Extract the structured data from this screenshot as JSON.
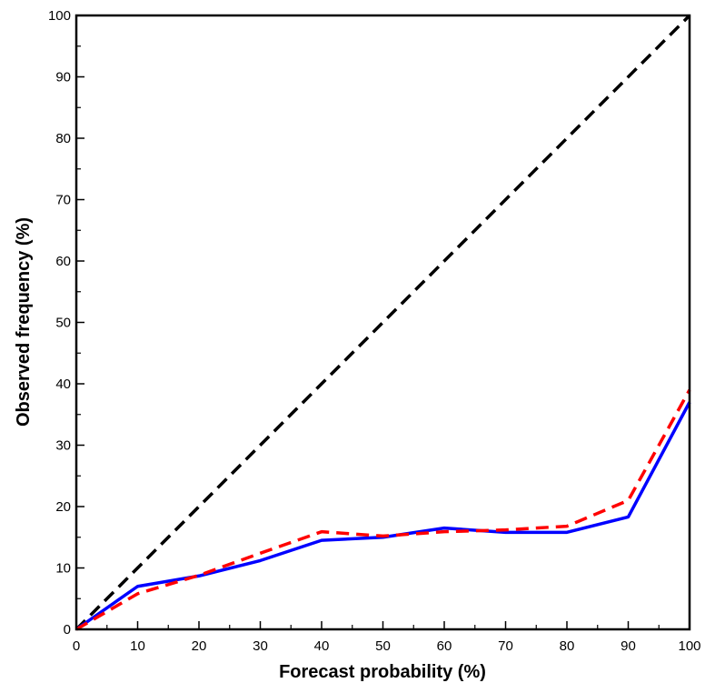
{
  "chart_data": {
    "type": "line",
    "title": "",
    "xlabel": "Forecast probability (%)",
    "ylabel": "Observed frequency (%)",
    "xlim": [
      0,
      100
    ],
    "ylim": [
      0,
      100
    ],
    "xticks": [
      0,
      10,
      20,
      30,
      40,
      50,
      60,
      70,
      80,
      90,
      100
    ],
    "yticks": [
      0,
      10,
      20,
      30,
      40,
      50,
      60,
      70,
      80,
      90,
      100
    ],
    "grid": false,
    "legend": "none",
    "series": [
      {
        "style": "dashed",
        "color": "#000000",
        "x": [
          0,
          100
        ],
        "y": [
          0,
          100
        ]
      },
      {
        "style": "solid",
        "color": "#0000ff",
        "x": [
          0,
          10,
          20,
          30,
          40,
          50,
          60,
          70,
          80,
          90,
          100
        ],
        "y": [
          0,
          7,
          8.7,
          11.2,
          14.5,
          15,
          16.5,
          15.8,
          15.8,
          18.3,
          37
        ]
      },
      {
        "style": "dashed",
        "color": "#ff0000",
        "x": [
          0,
          10,
          20,
          30,
          40,
          50,
          60,
          70,
          80,
          90,
          100
        ],
        "y": [
          0,
          5.8,
          8.8,
          12.4,
          15.9,
          15.2,
          15.9,
          16.2,
          16.8,
          21,
          39
        ]
      }
    ]
  }
}
